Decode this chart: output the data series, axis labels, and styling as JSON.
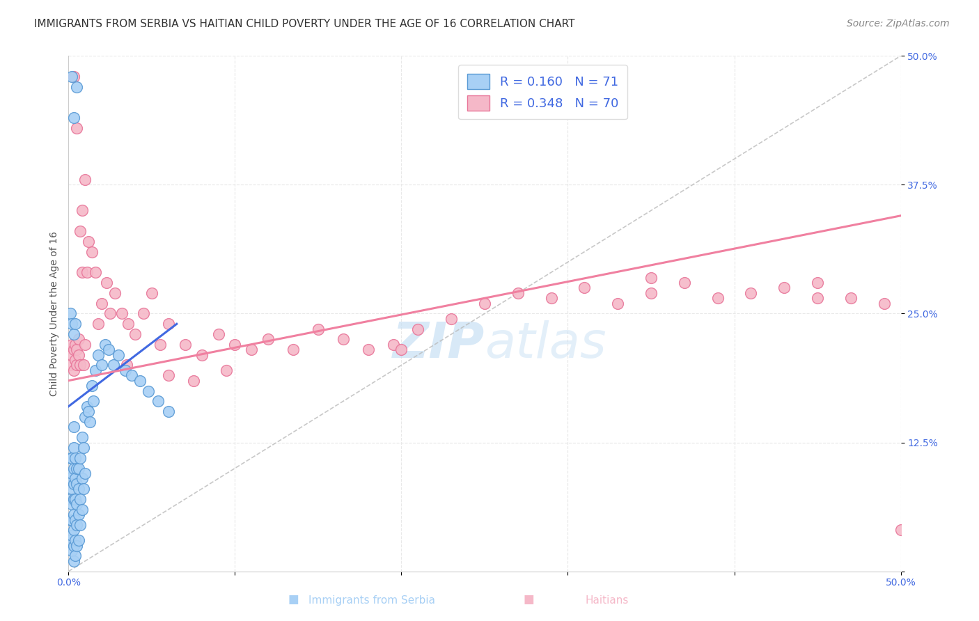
{
  "title": "IMMIGRANTS FROM SERBIA VS HAITIAN CHILD POVERTY UNDER THE AGE OF 16 CORRELATION CHART",
  "source": "Source: ZipAtlas.com",
  "ylabel": "Child Poverty Under the Age of 16",
  "xlabel_serbia": "Immigrants from Serbia",
  "xlabel_haitians": "Haitians",
  "xlim": [
    0.0,
    0.5
  ],
  "ylim": [
    0.0,
    0.5
  ],
  "yticks": [
    0.0,
    0.125,
    0.25,
    0.375,
    0.5
  ],
  "ytick_labels": [
    "",
    "12.5%",
    "25.0%",
    "37.5%",
    "50.0%"
  ],
  "xtick_labels": [
    "0.0%",
    "",
    "",
    "",
    "",
    "50.0%"
  ],
  "R_serbia": 0.16,
  "N_serbia": 71,
  "R_haitian": 0.348,
  "N_haitian": 70,
  "color_serbia_fill": "#A8D0F5",
  "color_serbia_edge": "#5B9BD5",
  "color_haitian_fill": "#F5B8C8",
  "color_haitian_edge": "#E8779A",
  "color_serbia_line": "#4169E1",
  "color_haitian_line": "#F080A0",
  "color_dashed": "#BBBBBB",
  "background_color": "#FFFFFF",
  "grid_color": "#E8E8E8",
  "watermark_color": "#C8E0F4",
  "title_fontsize": 11,
  "axis_label_fontsize": 10,
  "tick_fontsize": 10,
  "legend_fontsize": 13,
  "source_fontsize": 10,
  "serbia_x": [
    0.001,
    0.001,
    0.001,
    0.001,
    0.001,
    0.002,
    0.002,
    0.002,
    0.002,
    0.002,
    0.002,
    0.002,
    0.003,
    0.003,
    0.003,
    0.003,
    0.003,
    0.003,
    0.003,
    0.003,
    0.003,
    0.004,
    0.004,
    0.004,
    0.004,
    0.004,
    0.004,
    0.005,
    0.005,
    0.005,
    0.005,
    0.005,
    0.006,
    0.006,
    0.006,
    0.006,
    0.007,
    0.007,
    0.007,
    0.008,
    0.008,
    0.008,
    0.009,
    0.009,
    0.01,
    0.01,
    0.011,
    0.012,
    0.013,
    0.014,
    0.015,
    0.016,
    0.018,
    0.02,
    0.022,
    0.024,
    0.027,
    0.03,
    0.034,
    0.038,
    0.043,
    0.048,
    0.054,
    0.06,
    0.001,
    0.002,
    0.003,
    0.004,
    0.003,
    0.005,
    0.002
  ],
  "serbia_y": [
    0.03,
    0.05,
    0.07,
    0.09,
    0.11,
    0.02,
    0.035,
    0.05,
    0.065,
    0.08,
    0.095,
    0.11,
    0.01,
    0.025,
    0.04,
    0.055,
    0.07,
    0.085,
    0.1,
    0.12,
    0.14,
    0.015,
    0.03,
    0.05,
    0.07,
    0.09,
    0.11,
    0.025,
    0.045,
    0.065,
    0.085,
    0.1,
    0.03,
    0.055,
    0.08,
    0.1,
    0.045,
    0.07,
    0.11,
    0.06,
    0.09,
    0.13,
    0.08,
    0.12,
    0.095,
    0.15,
    0.16,
    0.155,
    0.145,
    0.18,
    0.165,
    0.195,
    0.21,
    0.2,
    0.22,
    0.215,
    0.2,
    0.21,
    0.195,
    0.19,
    0.185,
    0.175,
    0.165,
    0.155,
    0.25,
    0.24,
    0.23,
    0.24,
    0.44,
    0.47,
    0.48
  ],
  "haitian_x": [
    0.001,
    0.002,
    0.002,
    0.003,
    0.003,
    0.004,
    0.004,
    0.005,
    0.005,
    0.006,
    0.006,
    0.007,
    0.007,
    0.008,
    0.009,
    0.01,
    0.011,
    0.012,
    0.014,
    0.016,
    0.018,
    0.02,
    0.023,
    0.025,
    0.028,
    0.032,
    0.036,
    0.04,
    0.045,
    0.05,
    0.055,
    0.06,
    0.07,
    0.08,
    0.09,
    0.1,
    0.11,
    0.12,
    0.135,
    0.15,
    0.165,
    0.18,
    0.195,
    0.21,
    0.23,
    0.25,
    0.27,
    0.29,
    0.31,
    0.33,
    0.35,
    0.37,
    0.39,
    0.41,
    0.43,
    0.45,
    0.47,
    0.49,
    0.003,
    0.005,
    0.008,
    0.01,
    0.035,
    0.06,
    0.075,
    0.095,
    0.2,
    0.35,
    0.45,
    0.5
  ],
  "haitian_y": [
    0.2,
    0.21,
    0.22,
    0.195,
    0.215,
    0.205,
    0.22,
    0.2,
    0.215,
    0.21,
    0.225,
    0.2,
    0.33,
    0.29,
    0.2,
    0.22,
    0.29,
    0.32,
    0.31,
    0.29,
    0.24,
    0.26,
    0.28,
    0.25,
    0.27,
    0.25,
    0.24,
    0.23,
    0.25,
    0.27,
    0.22,
    0.24,
    0.22,
    0.21,
    0.23,
    0.22,
    0.215,
    0.225,
    0.215,
    0.235,
    0.225,
    0.215,
    0.22,
    0.235,
    0.245,
    0.26,
    0.27,
    0.265,
    0.275,
    0.26,
    0.27,
    0.28,
    0.265,
    0.27,
    0.275,
    0.28,
    0.265,
    0.26,
    0.48,
    0.43,
    0.35,
    0.38,
    0.2,
    0.19,
    0.185,
    0.195,
    0.215,
    0.285,
    0.265,
    0.04
  ],
  "serbia_line_x": [
    0.0,
    0.065
  ],
  "serbia_line_y": [
    0.16,
    0.24
  ],
  "haitian_line_x": [
    0.0,
    0.5
  ],
  "haitian_line_y": [
    0.185,
    0.345
  ]
}
